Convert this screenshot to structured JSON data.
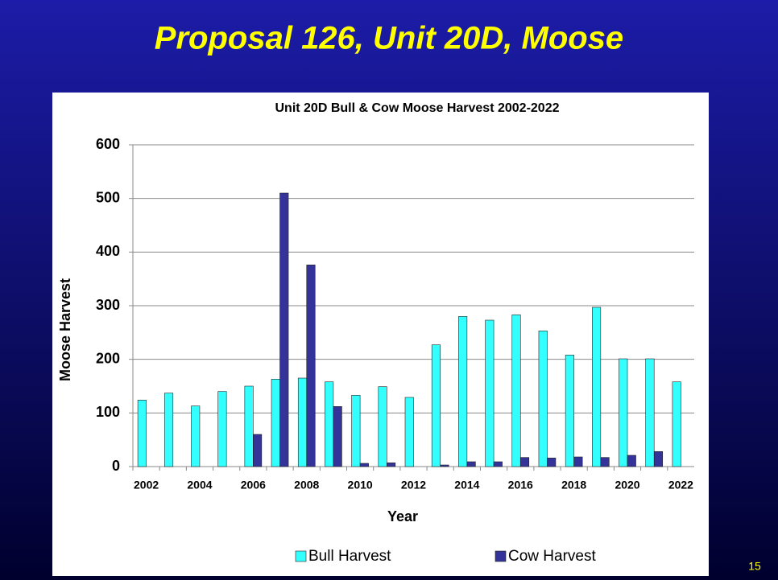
{
  "slide_title": "Proposal 126, Unit 20D, Moose",
  "page_number": "15",
  "chart_data": {
    "type": "bar",
    "title": "Unit 20D Bull & Cow Moose Harvest 2002-2022",
    "x_label": "Year",
    "y_label": "Moose Harvest",
    "categories": [
      "2002",
      null,
      "2004",
      null,
      "2006",
      null,
      "2008",
      null,
      "2010",
      null,
      "2012",
      null,
      "2014",
      null,
      "2016",
      null,
      "2018",
      null,
      "2020",
      null,
      "2022"
    ],
    "series": [
      {
        "name": "Bull Harvest",
        "color": "#33ffff",
        "values": [
          124,
          137,
          113,
          140,
          150,
          163,
          165,
          158,
          133,
          149,
          129,
          227,
          280,
          273,
          283,
          253,
          208,
          297,
          201,
          201,
          158
        ]
      },
      {
        "name": "Cow Harvest",
        "color": "#333399",
        "values": [
          0,
          0,
          0,
          0,
          60,
          510,
          376,
          112,
          6,
          7,
          0,
          3,
          9,
          9,
          17,
          16,
          18,
          17,
          21,
          28,
          0
        ]
      }
    ],
    "ylim": [
      0,
      600
    ],
    "yticks": [
      0,
      100,
      200,
      300,
      400,
      500,
      600
    ],
    "grid": true,
    "legend": "bottom"
  }
}
